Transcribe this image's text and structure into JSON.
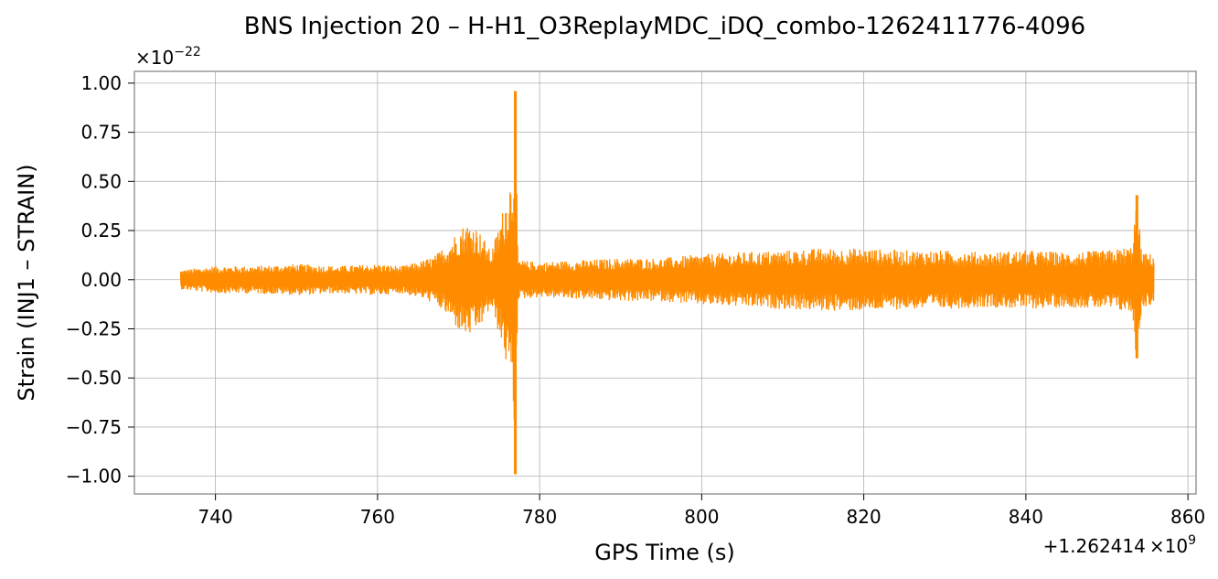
{
  "chart_data": {
    "type": "line",
    "title": "BNS Injection 20 – H-H1_O3ReplayMDC_iDQ_combo-1262411776-4096",
    "xlabel": "GPS Time (s)",
    "ylabel": "Strain (INJ1 – STRAIN)",
    "x_offset_label": "+1.262414",
    "x_offset_power": "×10",
    "x_offset_exp": "9",
    "y_scale_label": "×10",
    "y_scale_exp": "−22",
    "xlim": [
      730,
      861
    ],
    "ylim": [
      -1.09,
      1.06
    ],
    "xticks": [
      740,
      760,
      780,
      800,
      820,
      840,
      860
    ],
    "xtick_labels": [
      "740",
      "760",
      "780",
      "800",
      "820",
      "840",
      "860"
    ],
    "yticks": [
      -1.0,
      -0.75,
      -0.5,
      -0.25,
      0.0,
      0.25,
      0.5,
      0.75,
      1.0
    ],
    "ytick_labels": [
      "−1.00",
      "−0.75",
      "−0.50",
      "−0.25",
      "0.00",
      "0.25",
      "0.50",
      "0.75",
      "1.00"
    ],
    "grid": true,
    "series": [
      {
        "color": "#ff8c00",
        "x_range": [
          735.7,
          855.8
        ],
        "envelope": [
          [
            735.7,
            0.05
          ],
          [
            740,
            0.07
          ],
          [
            745,
            0.07
          ],
          [
            750,
            0.08
          ],
          [
            755,
            0.07
          ],
          [
            760,
            0.08
          ],
          [
            763,
            0.07
          ],
          [
            765,
            0.09
          ],
          [
            767,
            0.12
          ],
          [
            768,
            0.16
          ],
          [
            769,
            0.2
          ],
          [
            770,
            0.26
          ],
          [
            771,
            0.29
          ],
          [
            772,
            0.28
          ],
          [
            773,
            0.22
          ],
          [
            774,
            0.14
          ],
          [
            775,
            0.28
          ],
          [
            776,
            0.45
          ],
          [
            776.7,
            0.58
          ],
          [
            777.0,
            0.95
          ],
          [
            777.3,
            0.1
          ],
          [
            780,
            0.09
          ],
          [
            785,
            0.1
          ],
          [
            790,
            0.11
          ],
          [
            795,
            0.11
          ],
          [
            800,
            0.13
          ],
          [
            805,
            0.14
          ],
          [
            810,
            0.15
          ],
          [
            815,
            0.16
          ],
          [
            820,
            0.16
          ],
          [
            825,
            0.15
          ],
          [
            830,
            0.15
          ],
          [
            835,
            0.14
          ],
          [
            840,
            0.15
          ],
          [
            845,
            0.14
          ],
          [
            850,
            0.15
          ],
          [
            853,
            0.17
          ],
          [
            853.7,
            0.42
          ],
          [
            854.3,
            0.14
          ],
          [
            855.8,
            0.13
          ]
        ],
        "peaks": [
          {
            "x": 777.0,
            "ymax": 0.96,
            "ymin": -0.99
          },
          {
            "x": 853.7,
            "ymax": 0.43,
            "ymin": -0.4
          }
        ]
      }
    ]
  }
}
